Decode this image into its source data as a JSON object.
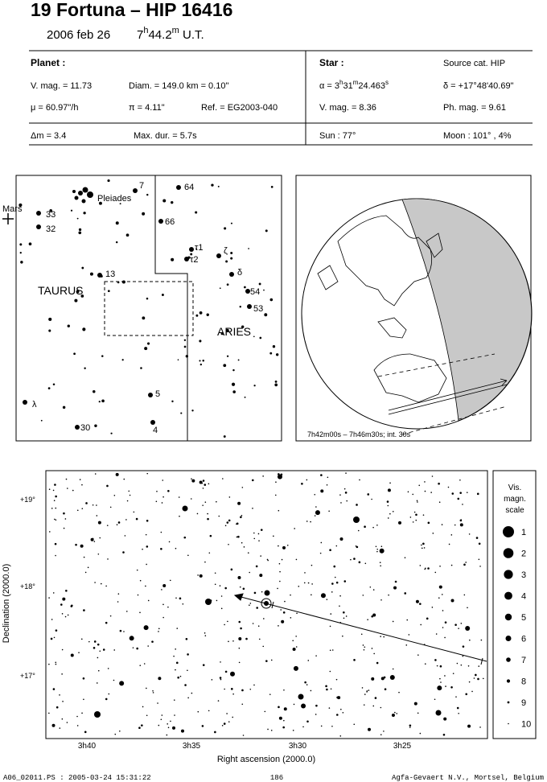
{
  "header": {
    "title": "19 Fortuna  –  HIP 16416",
    "date": "2006 feb 26",
    "time": [
      "7",
      "h",
      "44.2",
      "m",
      " U.T."
    ]
  },
  "info": {
    "planet_label": "Planet :",
    "vmag": "V. mag. = 11.73",
    "diam": "Diam. = 149.0 km = 0.10\"",
    "mu": "μ =  60.97\"/h",
    "pi": "π =  4.11\"",
    "ref": "Ref. = EG2003-040",
    "star_label": "Star :",
    "source": "Source cat.  HIP",
    "alpha": [
      "α = 3",
      "h",
      "31",
      "m",
      "24.463",
      "s"
    ],
    "delta": "δ = +17°48'40.69\"",
    "star_vmag": "V. mag. =  8.36",
    "ph_mag": "Ph. mag. =  9.61",
    "dm": "Δm = 3.4",
    "max_dur": "Max. dur. = 5.7s",
    "sun": "Sun :  77°",
    "moon": "Moon : 101° ,  4%"
  },
  "finder": {
    "labels": [
      "7",
      "64",
      "Pleiades",
      "Mars",
      "33",
      "32",
      "66",
      "τ1",
      "τ2",
      "ζ",
      "13",
      "δ",
      "TAURUS",
      "54",
      "53",
      "ARIES",
      "5",
      "λ",
      "30",
      "4"
    ]
  },
  "globe": {
    "caption": "7h42m00s – 7h46m30s; int. 30s"
  },
  "main_chart": {
    "yticks": [
      "+19°",
      "+18°",
      "+17°"
    ],
    "xticks": [
      "3h40",
      "3h35",
      "3h30",
      "3h25"
    ],
    "ylabel": "Declination (2000.0)",
    "xlabel": "Right ascension (2000.0)",
    "scale_title": [
      "Vis.",
      "magn.",
      "scale"
    ],
    "scale": [
      1,
      2,
      3,
      4,
      5,
      6,
      7,
      8,
      9,
      10
    ]
  },
  "footer": {
    "file": "A06_02011.PS : 2005-03-24 15:31:22",
    "page": "186",
    "credit": "Agfa-Gevaert N.V., Mortsel, Belgium"
  }
}
